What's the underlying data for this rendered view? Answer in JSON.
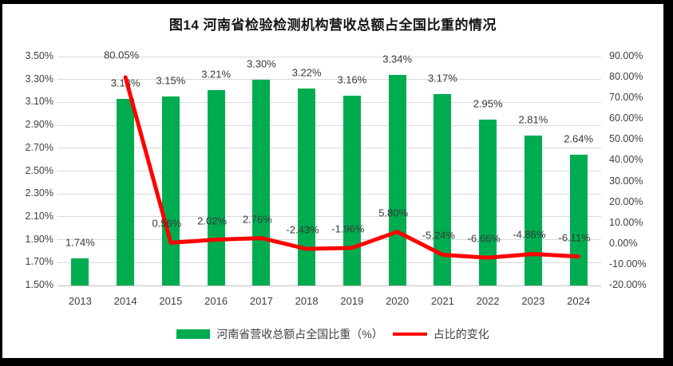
{
  "frame": {
    "border_color": "#000000",
    "background": "#FFFFFF"
  },
  "chart_data": {
    "type": "combo-bar-line",
    "title": "图14 河南省检验检测机构营收总额占全国比重的情况",
    "categories": [
      "2013",
      "2014",
      "2015",
      "2016",
      "2017",
      "2018",
      "2019",
      "2020",
      "2021",
      "2022",
      "2023",
      "2024"
    ],
    "series": [
      {
        "name": "河南省营收总额占全国比重（%）",
        "type": "bar",
        "axis": "left",
        "color": "#00AC50",
        "values": [
          1.74,
          3.13,
          3.15,
          3.21,
          3.3,
          3.22,
          3.16,
          3.34,
          3.17,
          2.95,
          2.81,
          2.64
        ],
        "labels": [
          "1.74%",
          "3.13%",
          "3.15%",
          "3.21%",
          "3.30%",
          "3.22%",
          "3.16%",
          "3.34%",
          "3.17%",
          "2.95%",
          "2.81%",
          "2.64%"
        ]
      },
      {
        "name": "占比的变化",
        "type": "line",
        "axis": "right",
        "color": "#FE0000",
        "values": [
          null,
          80.05,
          0.56,
          2.02,
          2.76,
          -2.43,
          -1.96,
          5.8,
          -5.24,
          -6.66,
          -4.86,
          -6.11
        ],
        "labels": [
          null,
          "80.05%",
          "0.56%",
          "2.02%",
          "2.76%",
          "-2.43%",
          "-1.96%",
          "5.80%",
          "-5.24%",
          "-6.66%",
          "-4.86%",
          "-6.11%"
        ]
      }
    ],
    "left_axis": {
      "min": 1.5,
      "max": 3.5,
      "step": 0.2,
      "ticks": [
        "3.50%",
        "3.30%",
        "3.10%",
        "2.90%",
        "2.70%",
        "2.50%",
        "2.30%",
        "2.10%",
        "1.90%",
        "1.70%",
        "1.50%"
      ]
    },
    "right_axis": {
      "min": -20,
      "max": 90,
      "step": 10,
      "ticks": [
        "90.00%",
        "80.00%",
        "70.00%",
        "60.00%",
        "50.00%",
        "40.00%",
        "30.00%",
        "20.00%",
        "10.00%",
        "0.00%",
        "-10.00%",
        "-20.00%"
      ]
    },
    "grid": {
      "color": "#D9D9D9",
      "axis_line_color": "#BFBFBF",
      "on": true
    },
    "legend_position": "bottom",
    "text_color": "#404040"
  }
}
